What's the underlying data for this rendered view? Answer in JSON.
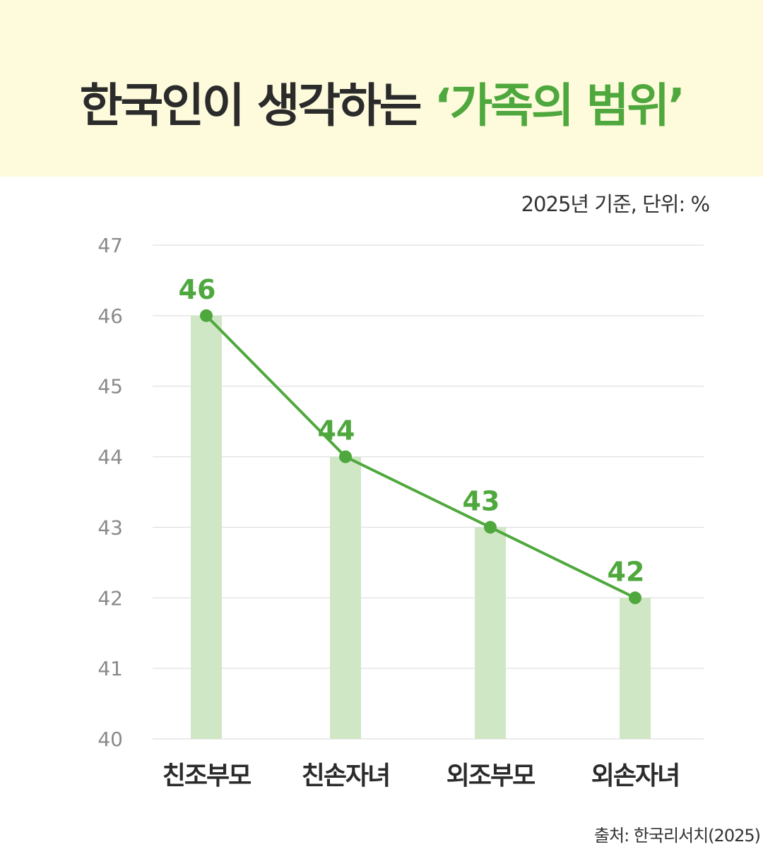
{
  "header": {
    "title_main": "한국인이 생각하는 ",
    "title_accent": "‘가족의 범위’"
  },
  "unit_note": "2025년 기준, 단위: %",
  "source_note": "출처: 한국리서치(2025)",
  "colors": {
    "header_bg": "#fefbdd",
    "accent": "#4fa83d",
    "bar_fill": "#d0e7c6",
    "grid": "#d9d9d9"
  },
  "chart_data": {
    "type": "bar",
    "categories": [
      "친조부모",
      "친손자녀",
      "외조부모",
      "외손자녀"
    ],
    "values": [
      46,
      44,
      43,
      42
    ],
    "overlay_line": true,
    "data_labels": [
      "46",
      "44",
      "43",
      "42"
    ],
    "ylim": [
      40,
      47
    ],
    "yticks": [
      40,
      41,
      42,
      43,
      44,
      45,
      46,
      47
    ],
    "grid": true,
    "xlabel": "",
    "ylabel": ""
  }
}
